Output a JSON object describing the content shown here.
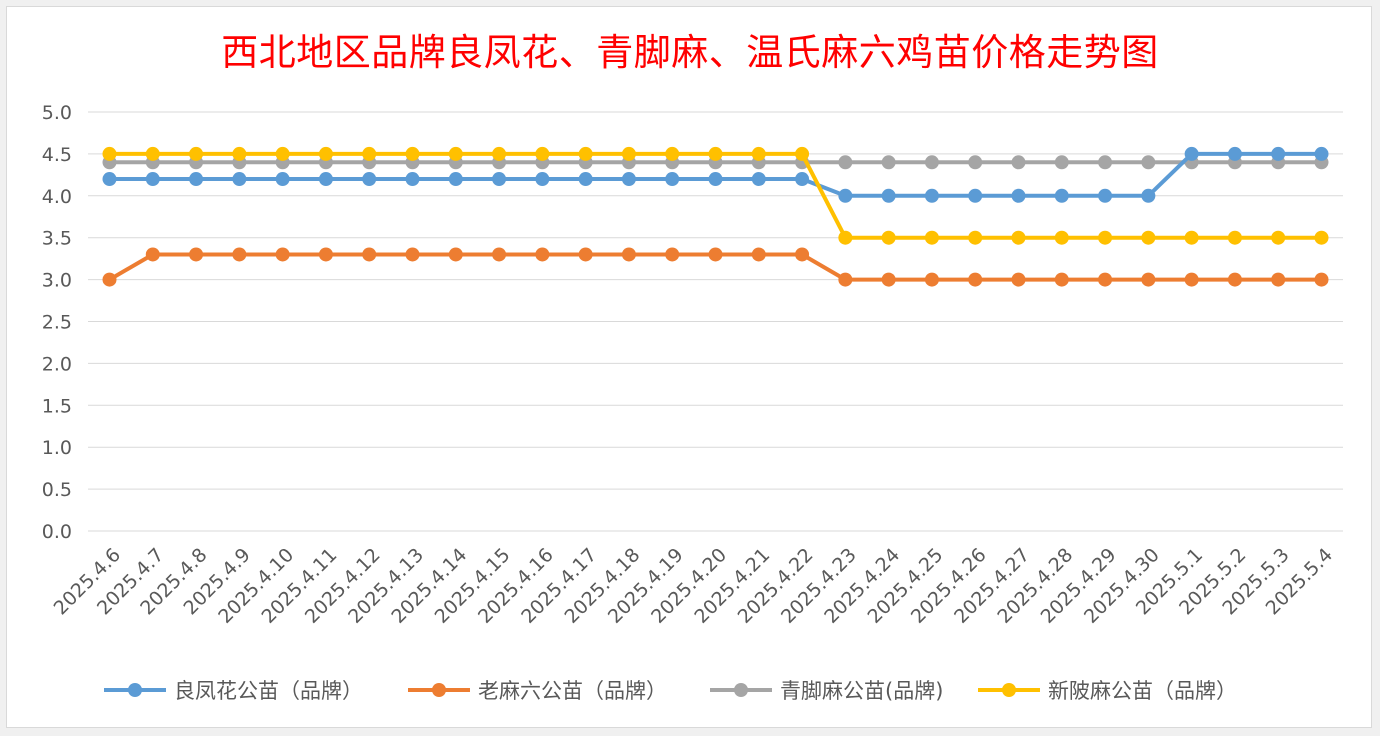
{
  "chart_data": {
    "type": "line",
    "title": "西北地区品牌良凤花、青脚麻、温氏麻六鸡苗价格走势图",
    "xlabel": "",
    "ylabel": "",
    "ylim": [
      0,
      5
    ],
    "yticks": [
      "5.0",
      "4.5",
      "4.0",
      "3.5",
      "3.0",
      "2.5",
      "2.0",
      "1.5",
      "1.0",
      "0.5",
      "0.0"
    ],
    "grid": "horizontal",
    "legend_position": "bottom",
    "categories": [
      "2025.4.6",
      "2025.4.7",
      "2025.4.8",
      "2025.4.9",
      "2025.4.10",
      "2025.4.11",
      "2025.4.12",
      "2025.4.13",
      "2025.4.14",
      "2025.4.15",
      "2025.4.16",
      "2025.4.17",
      "2025.4.18",
      "2025.4.19",
      "2025.4.20",
      "2025.4.21",
      "2025.4.22",
      "2025.4.23",
      "2025.4.24",
      "2025.4.25",
      "2025.4.26",
      "2025.4.27",
      "2025.4.28",
      "2025.4.29",
      "2025.4.30",
      "2025.5.1",
      "2025.5.2",
      "2025.5.3",
      "2025.5.4"
    ],
    "series": [
      {
        "name": "良凤花公苗（品牌）",
        "color": "#5b9bd5",
        "values": [
          4.2,
          4.2,
          4.2,
          4.2,
          4.2,
          4.2,
          4.2,
          4.2,
          4.2,
          4.2,
          4.2,
          4.2,
          4.2,
          4.2,
          4.2,
          4.2,
          4.2,
          4.0,
          4.0,
          4.0,
          4.0,
          4.0,
          4.0,
          4.0,
          4.0,
          4.5,
          4.5,
          4.5,
          4.5
        ]
      },
      {
        "name": "老麻六公苗（品牌）",
        "color": "#ed7d31",
        "values": [
          3.0,
          3.3,
          3.3,
          3.3,
          3.3,
          3.3,
          3.3,
          3.3,
          3.3,
          3.3,
          3.3,
          3.3,
          3.3,
          3.3,
          3.3,
          3.3,
          3.3,
          3.0,
          3.0,
          3.0,
          3.0,
          3.0,
          3.0,
          3.0,
          3.0,
          3.0,
          3.0,
          3.0,
          3.0
        ]
      },
      {
        "name": "青脚麻公苗(品牌)",
        "color": "#a5a5a5",
        "values": [
          4.4,
          4.4,
          4.4,
          4.4,
          4.4,
          4.4,
          4.4,
          4.4,
          4.4,
          4.4,
          4.4,
          4.4,
          4.4,
          4.4,
          4.4,
          4.4,
          4.4,
          4.4,
          4.4,
          4.4,
          4.4,
          4.4,
          4.4,
          4.4,
          4.4,
          4.4,
          4.4,
          4.4,
          4.4
        ]
      },
      {
        "name": "新陂麻公苗（品牌）",
        "color": "#ffc000",
        "values": [
          4.5,
          4.5,
          4.5,
          4.5,
          4.5,
          4.5,
          4.5,
          4.5,
          4.5,
          4.5,
          4.5,
          4.5,
          4.5,
          4.5,
          4.5,
          4.5,
          4.5,
          3.5,
          3.5,
          3.5,
          3.5,
          3.5,
          3.5,
          3.5,
          3.5,
          3.5,
          3.5,
          3.5,
          3.5
        ]
      }
    ]
  }
}
